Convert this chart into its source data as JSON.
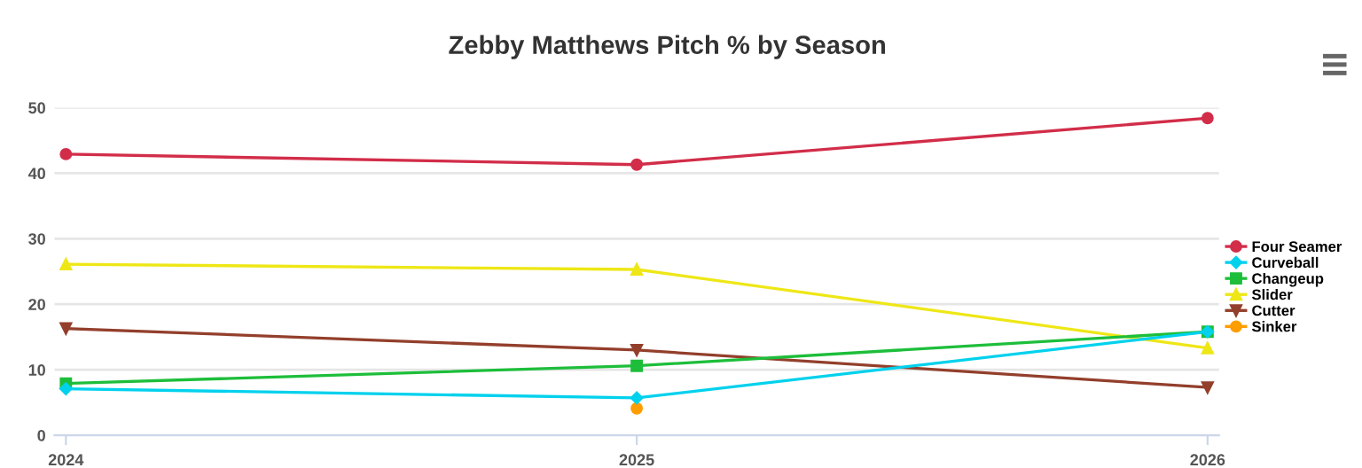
{
  "chart_data": {
    "type": "line",
    "title": "Zebby Matthews Pitch % by Season",
    "categories": [
      "2024",
      "2025",
      "2026"
    ],
    "series": [
      {
        "name": "Four Seamer",
        "color": "#d22d49",
        "marker": "circle",
        "values": [
          42.9,
          41.3,
          48.4
        ]
      },
      {
        "name": "Curveball",
        "color": "#00d1ed",
        "marker": "diamond",
        "values": [
          7.1,
          5.7,
          15.8
        ]
      },
      {
        "name": "Changeup",
        "color": "#1dbe3a",
        "marker": "square",
        "values": [
          7.9,
          10.6,
          15.8
        ]
      },
      {
        "name": "Slider",
        "color": "#eee716",
        "marker": "triangle",
        "values": [
          26.1,
          25.3,
          13.3
        ]
      },
      {
        "name": "Cutter",
        "color": "#933f2c",
        "marker": "triangle_down",
        "values": [
          16.3,
          13.0,
          7.3
        ]
      },
      {
        "name": "Sinker",
        "color": "#fe9d00",
        "marker": "circle",
        "values": [
          null,
          4.1,
          null
        ]
      }
    ],
    "ylim": [
      0,
      50
    ],
    "yticks": [
      0,
      10,
      20,
      30,
      40,
      50
    ],
    "grid": "y",
    "legend": "right"
  }
}
